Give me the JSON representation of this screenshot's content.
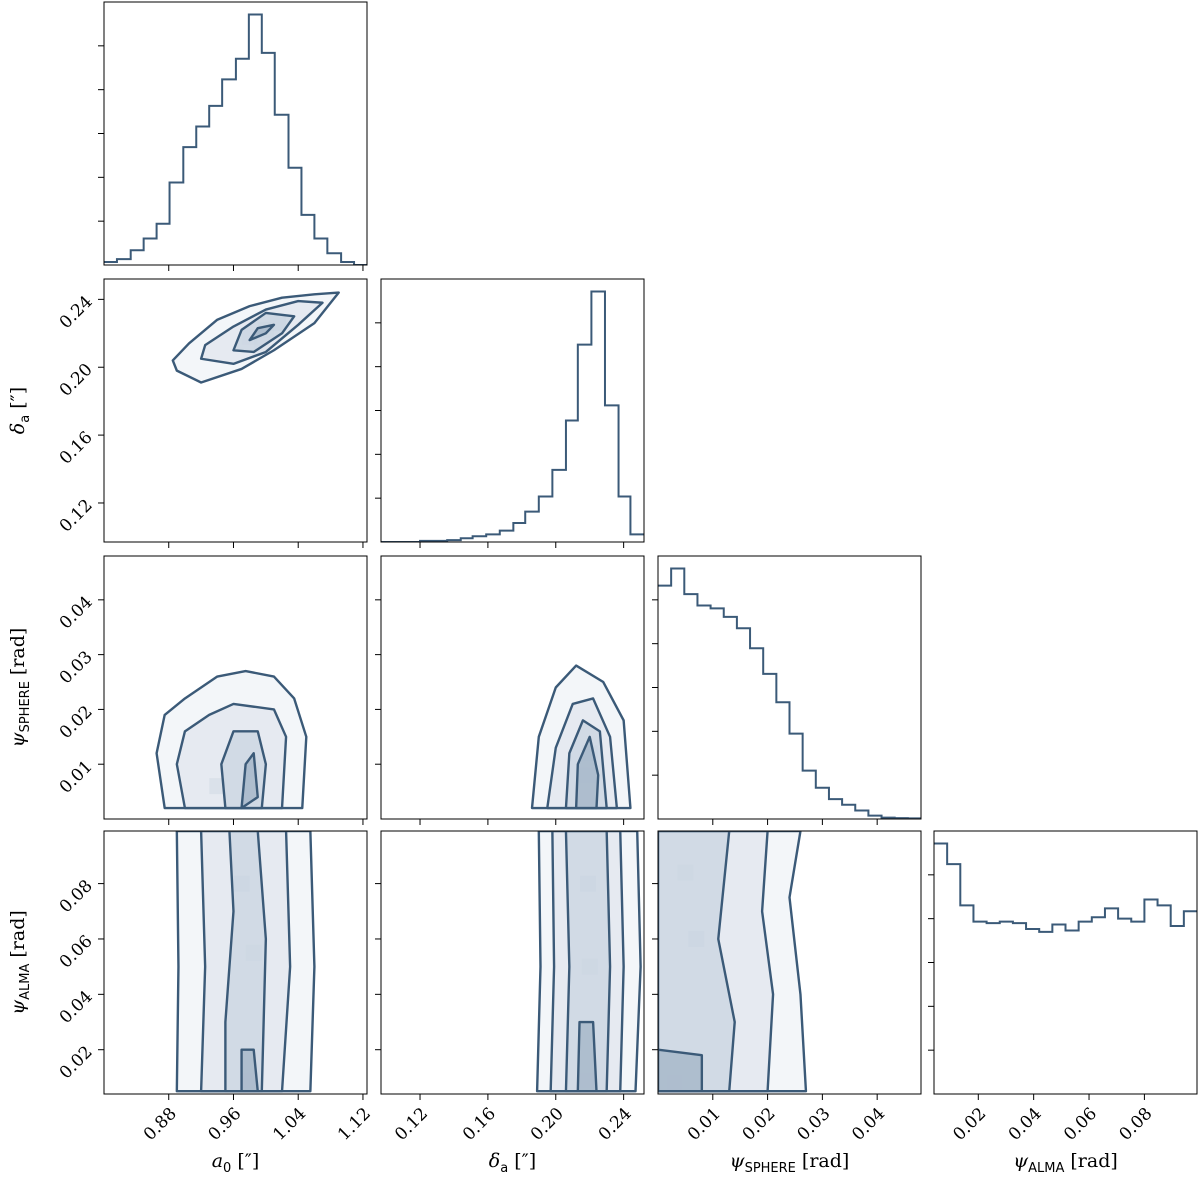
{
  "chart_data": {
    "type": "corner",
    "color": "#3b5a78",
    "parameters": [
      {
        "key": "a0",
        "label_sym": "a",
        "label_sub": "0",
        "label_unit": " [″]",
        "range": [
          0.8,
          1.125
        ],
        "ticks": [
          0.88,
          0.96,
          1.04,
          1.12
        ],
        "tick_labels": [
          "0.88",
          "0.96",
          "1.04",
          "1.12"
        ]
      },
      {
        "key": "delta",
        "label_sym": "δ",
        "label_sub": "a",
        "label_unit": " [″]",
        "range": [
          0.097,
          0.252
        ],
        "ticks": [
          0.12,
          0.16,
          0.2,
          0.24
        ],
        "tick_labels": [
          "0.12",
          "0.16",
          "0.20",
          "0.24"
        ]
      },
      {
        "key": "psiS",
        "label_sym": "ψ",
        "label_sub": "SPHERE",
        "label_unit": " [rad]",
        "range": [
          0.0,
          0.048
        ],
        "ticks": [
          0.01,
          0.02,
          0.03,
          0.04
        ],
        "tick_labels": [
          "0.01",
          "0.02",
          "0.03",
          "0.04"
        ]
      },
      {
        "key": "psiA",
        "label_sym": "ψ",
        "label_sub": "ALMA",
        "label_unit": " [rad]",
        "range": [
          0.004,
          0.099
        ],
        "ticks": [
          0.02,
          0.04,
          0.06,
          0.08
        ],
        "tick_labels": [
          "0.02",
          "0.04",
          "0.06",
          "0.08"
        ]
      }
    ],
    "histograms": [
      {
        "param": "a0",
        "edges": [
          0.8,
          0.816,
          0.833,
          0.849,
          0.865,
          0.881,
          0.898,
          0.914,
          0.93,
          0.946,
          0.963,
          0.979,
          0.995,
          1.011,
          1.028,
          1.044,
          1.06,
          1.076,
          1.093,
          1.109,
          1.125
        ],
        "counts": [
          1,
          2,
          5,
          9,
          14,
          28,
          40,
          47,
          54,
          63,
          70,
          85,
          72,
          51,
          33,
          17,
          9,
          4,
          1,
          0
        ]
      },
      {
        "param": "delta",
        "edges": [
          0.097,
          0.105,
          0.113,
          0.12,
          0.128,
          0.136,
          0.144,
          0.151,
          0.159,
          0.167,
          0.175,
          0.182,
          0.19,
          0.198,
          0.206,
          0.213,
          0.221,
          0.229,
          0.237,
          0.244,
          0.252
        ],
        "counts": [
          0,
          0,
          0,
          0.3,
          0.3,
          0.5,
          1,
          1.5,
          2,
          3,
          5,
          8,
          12,
          19,
          32,
          52,
          66,
          36,
          12,
          2
        ]
      },
      {
        "param": "psiS",
        "edges": [
          0.0,
          0.0024,
          0.0048,
          0.0072,
          0.0096,
          0.012,
          0.0144,
          0.0168,
          0.0192,
          0.0216,
          0.024,
          0.0264,
          0.0288,
          0.0312,
          0.0336,
          0.036,
          0.0384,
          0.0408,
          0.0432,
          0.0456,
          0.048
        ],
        "counts": [
          82,
          88,
          79,
          75,
          74,
          71,
          67,
          60,
          51,
          41,
          30,
          17,
          11,
          7,
          5,
          3,
          1.2,
          0.5,
          0.3,
          0.2
        ]
      },
      {
        "param": "psiA",
        "edges": [
          0.004,
          0.00875,
          0.0135,
          0.01825,
          0.023,
          0.02775,
          0.0325,
          0.03725,
          0.042,
          0.04675,
          0.0515,
          0.05625,
          0.061,
          0.06575,
          0.0705,
          0.07525,
          0.08,
          0.08475,
          0.0895,
          0.09425,
          0.099
        ],
        "counts": [
          170,
          156,
          128,
          117,
          116,
          117,
          116,
          112,
          110,
          115,
          111,
          117,
          120,
          126,
          119,
          117,
          132,
          128,
          114,
          124
        ]
      }
    ],
    "joint_2d": [
      {
        "x": "a0",
        "y": "delta",
        "contours": [
          [
            [
              0.89,
              0.198
            ],
            [
              0.92,
              0.191
            ],
            [
              0.97,
              0.199
            ],
            [
              1.01,
              0.21
            ],
            [
              1.06,
              0.226
            ],
            [
              1.09,
              0.244
            ],
            [
              1.06,
              0.243
            ],
            [
              1.02,
              0.241
            ],
            [
              0.98,
              0.236
            ],
            [
              0.94,
              0.228
            ],
            [
              0.905,
              0.214
            ],
            [
              0.885,
              0.204
            ]
          ],
          [
            [
              0.92,
              0.205
            ],
            [
              0.96,
              0.202
            ],
            [
              1.0,
              0.209
            ],
            [
              1.04,
              0.225
            ],
            [
              1.07,
              0.238
            ],
            [
              1.04,
              0.239
            ],
            [
              1.0,
              0.234
            ],
            [
              0.96,
              0.224
            ],
            [
              0.925,
              0.213
            ]
          ],
          [
            [
              0.96,
              0.21
            ],
            [
              0.985,
              0.209
            ],
            [
              1.02,
              0.22
            ],
            [
              1.035,
              0.23
            ],
            [
              1.0,
              0.232
            ],
            [
              0.97,
              0.222
            ]
          ],
          [
            [
              0.98,
              0.216
            ],
            [
              1.0,
              0.22
            ],
            [
              1.01,
              0.225
            ],
            [
              0.99,
              0.223
            ]
          ]
        ],
        "dense_points": [
          [
            0.98,
            0.218
          ],
          [
            1.0,
            0.222
          ],
          [
            1.015,
            0.226
          ],
          [
            0.995,
            0.214
          ]
        ]
      },
      {
        "x": "a0",
        "y": "psiS",
        "contours": [
          [
            [
              0.875,
              0.002
            ],
            [
              0.865,
              0.012
            ],
            [
              0.875,
              0.019
            ],
            [
              0.9,
              0.022
            ],
            [
              0.94,
              0.026
            ],
            [
              0.975,
              0.027
            ],
            [
              1.01,
              0.026
            ],
            [
              1.035,
              0.022
            ],
            [
              1.05,
              0.015
            ],
            [
              1.045,
              0.002
            ]
          ],
          [
            [
              0.9,
              0.002
            ],
            [
              0.89,
              0.01
            ],
            [
              0.9,
              0.016
            ],
            [
              0.93,
              0.019
            ],
            [
              0.96,
              0.021
            ],
            [
              1.01,
              0.02
            ],
            [
              1.025,
              0.015
            ],
            [
              1.02,
              0.002
            ]
          ],
          [
            [
              0.95,
              0.002
            ],
            [
              0.945,
              0.01
            ],
            [
              0.96,
              0.016
            ],
            [
              0.99,
              0.016
            ],
            [
              1.0,
              0.01
            ],
            [
              0.995,
              0.002
            ]
          ],
          [
            [
              0.97,
              0.002
            ],
            [
              0.975,
              0.01
            ],
            [
              0.985,
              0.012
            ],
            [
              0.99,
              0.004
            ]
          ]
        ],
        "dense_points": [
          [
            0.98,
            0.004
          ],
          [
            0.982,
            0.009
          ],
          [
            0.94,
            0.006
          ]
        ]
      },
      {
        "x": "delta",
        "y": "psiS",
        "contours": [
          [
            [
              0.186,
              0.002
            ],
            [
              0.19,
              0.015
            ],
            [
              0.2,
              0.024
            ],
            [
              0.212,
              0.028
            ],
            [
              0.228,
              0.025
            ],
            [
              0.24,
              0.018
            ],
            [
              0.244,
              0.002
            ]
          ],
          [
            [
              0.195,
              0.002
            ],
            [
              0.2,
              0.013
            ],
            [
              0.21,
              0.021
            ],
            [
              0.222,
              0.022
            ],
            [
              0.232,
              0.015
            ],
            [
              0.236,
              0.002
            ]
          ],
          [
            [
              0.206,
              0.002
            ],
            [
              0.208,
              0.012
            ],
            [
              0.216,
              0.018
            ],
            [
              0.226,
              0.016
            ],
            [
              0.23,
              0.002
            ]
          ],
          [
            [
              0.212,
              0.002
            ],
            [
              0.213,
              0.01
            ],
            [
              0.22,
              0.015
            ],
            [
              0.225,
              0.008
            ],
            [
              0.224,
              0.002
            ]
          ]
        ],
        "dense_points": [
          [
            0.218,
            0.004
          ],
          [
            0.219,
            0.008
          ],
          [
            0.22,
            0.012
          ]
        ]
      },
      {
        "x": "a0",
        "y": "psiA",
        "contours": [
          [
            [
              0.89,
              0.005
            ],
            [
              0.892,
              0.05
            ],
            [
              0.89,
              0.099
            ],
            [
              1.055,
              0.099
            ],
            [
              1.06,
              0.05
            ],
            [
              1.055,
              0.005
            ]
          ],
          [
            [
              0.92,
              0.005
            ],
            [
              0.925,
              0.05
            ],
            [
              0.92,
              0.099
            ],
            [
              1.025,
              0.099
            ],
            [
              1.03,
              0.05
            ],
            [
              1.02,
              0.005
            ]
          ],
          [
            [
              0.95,
              0.005
            ],
            [
              0.95,
              0.03
            ],
            [
              0.96,
              0.07
            ],
            [
              0.955,
              0.099
            ],
            [
              0.99,
              0.099
            ],
            [
              1.0,
              0.06
            ],
            [
              0.995,
              0.005
            ]
          ],
          [
            [
              0.97,
              0.005
            ],
            [
              0.97,
              0.02
            ],
            [
              0.985,
              0.02
            ],
            [
              0.99,
              0.005
            ]
          ]
        ],
        "dense_points": [
          [
            0.98,
            0.009
          ],
          [
            0.985,
            0.055
          ],
          [
            0.97,
            0.08
          ]
        ]
      },
      {
        "x": "delta",
        "y": "psiA",
        "contours": [
          [
            [
              0.189,
              0.005
            ],
            [
              0.191,
              0.05
            ],
            [
              0.19,
              0.099
            ],
            [
              0.248,
              0.099
            ],
            [
              0.25,
              0.05
            ],
            [
              0.247,
              0.005
            ]
          ],
          [
            [
              0.197,
              0.005
            ],
            [
              0.199,
              0.05
            ],
            [
              0.198,
              0.099
            ],
            [
              0.238,
              0.099
            ],
            [
              0.24,
              0.05
            ],
            [
              0.238,
              0.005
            ]
          ],
          [
            [
              0.206,
              0.005
            ],
            [
              0.208,
              0.05
            ],
            [
              0.206,
              0.099
            ],
            [
              0.23,
              0.099
            ],
            [
              0.232,
              0.05
            ],
            [
              0.23,
              0.005
            ]
          ],
          [
            [
              0.213,
              0.005
            ],
            [
              0.214,
              0.03
            ],
            [
              0.222,
              0.03
            ],
            [
              0.224,
              0.005
            ]
          ]
        ],
        "dense_points": [
          [
            0.219,
            0.009
          ],
          [
            0.22,
            0.05
          ],
          [
            0.219,
            0.08
          ]
        ]
      },
      {
        "x": "psiS",
        "y": "psiA",
        "contours": [
          [
            [
              0.0,
              0.005
            ],
            [
              0.027,
              0.005
            ],
            [
              0.026,
              0.04
            ],
            [
              0.024,
              0.075
            ],
            [
              0.026,
              0.099
            ],
            [
              0.0,
              0.099
            ]
          ],
          [
            [
              0.0,
              0.005
            ],
            [
              0.02,
              0.005
            ],
            [
              0.021,
              0.04
            ],
            [
              0.019,
              0.07
            ],
            [
              0.02,
              0.099
            ],
            [
              0.0,
              0.099
            ]
          ],
          [
            [
              0.0,
              0.005
            ],
            [
              0.013,
              0.005
            ],
            [
              0.014,
              0.03
            ],
            [
              0.011,
              0.06
            ],
            [
              0.013,
              0.099
            ],
            [
              0.0,
              0.099
            ]
          ],
          [
            [
              0.0,
              0.005
            ],
            [
              0.008,
              0.005
            ],
            [
              0.008,
              0.018
            ],
            [
              0.0,
              0.02
            ]
          ]
        ],
        "dense_points": [
          [
            0.003,
            0.008
          ],
          [
            0.005,
            0.084
          ],
          [
            0.007,
            0.06
          ]
        ]
      }
    ]
  }
}
